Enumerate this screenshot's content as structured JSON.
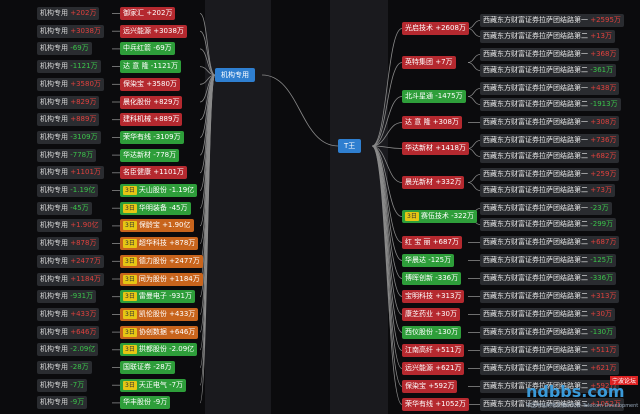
{
  "hubs": {
    "left": "机构专用",
    "right": "T王"
  },
  "left_rows": [
    {
      "label": "机构专用",
      "lval": "+202万",
      "ldir": "up",
      "name": "御家汇",
      "val": "+202万",
      "color": "red",
      "tag": false
    },
    {
      "label": "机构专用",
      "lval": "+3038万",
      "ldir": "up",
      "name": "远兴能源",
      "val": "+3038万",
      "color": "red",
      "tag": false
    },
    {
      "label": "机构专用",
      "lval": "-69万",
      "ldir": "dn",
      "name": "中兵红箭",
      "val": "-69万",
      "color": "green",
      "tag": false
    },
    {
      "label": "机构专用",
      "lval": "-1121万",
      "ldir": "dn",
      "name": "达 意 隆",
      "val": "-1121万",
      "color": "green",
      "tag": false
    },
    {
      "label": "机构专用",
      "lval": "+3580万",
      "ldir": "up",
      "name": "保染宝",
      "val": "+3580万",
      "color": "red",
      "tag": false
    },
    {
      "label": "机构专用",
      "lval": "+829万",
      "ldir": "up",
      "name": "晨化股份",
      "val": "+829万",
      "color": "red",
      "tag": false
    },
    {
      "label": "机构专用",
      "lval": "+889万",
      "ldir": "up",
      "name": "建科机械",
      "val": "+889万",
      "color": "red",
      "tag": false
    },
    {
      "label": "机构专用",
      "lval": "-3109万",
      "ldir": "dn",
      "name": "荣华有线",
      "val": "-3109万",
      "color": "green",
      "tag": false
    },
    {
      "label": "机构专用",
      "lval": "-778万",
      "ldir": "dn",
      "name": "华达新材",
      "val": "-778万",
      "color": "green",
      "tag": false
    },
    {
      "label": "机构专用",
      "lval": "+1101万",
      "ldir": "up",
      "name": "名臣健康",
      "val": "+1101万",
      "color": "red",
      "tag": false
    },
    {
      "label": "机构专用",
      "lval": "-1.19亿",
      "ldir": "dn",
      "name": "天山股份",
      "val": "-1.19亿",
      "color": "green",
      "tag": true
    },
    {
      "label": "机构专用",
      "lval": "-45万",
      "ldir": "dn",
      "name": "华明装备",
      "val": "-45万",
      "color": "green",
      "tag": true
    },
    {
      "label": "机构专用",
      "lval": "+1.90亿",
      "ldir": "up",
      "name": "保龄宝",
      "val": "+1.90亿",
      "color": "orange",
      "tag": true
    },
    {
      "label": "机构专用",
      "lval": "+878万",
      "ldir": "up",
      "name": "超华科技",
      "val": "+878万",
      "color": "orange",
      "tag": true
    },
    {
      "label": "机构专用",
      "lval": "+2477万",
      "ldir": "up",
      "name": "德力股份",
      "val": "+2477万",
      "color": "orange",
      "tag": true
    },
    {
      "label": "机构专用",
      "lval": "+1184万",
      "ldir": "up",
      "name": "同为股份",
      "val": "+1184万",
      "color": "orange",
      "tag": true
    },
    {
      "label": "机构专用",
      "lval": "-931万",
      "ldir": "dn",
      "name": "雷曼电子",
      "val": "-931万",
      "color": "green",
      "tag": true
    },
    {
      "label": "机构专用",
      "lval": "+433万",
      "ldir": "up",
      "name": "凯伦股份",
      "val": "+433万",
      "color": "orange",
      "tag": true
    },
    {
      "label": "机构专用",
      "lval": "+646万",
      "ldir": "up",
      "name": "协创数据",
      "val": "+646万",
      "color": "orange",
      "tag": true
    },
    {
      "label": "机构专用",
      "lval": "-2.09亿",
      "ldir": "dn",
      "name": "拱都股份",
      "val": "-2.09亿",
      "color": "green",
      "tag": true
    },
    {
      "label": "机构专用",
      "lval": "-28万",
      "ldir": "dn",
      "name": "国联证券",
      "val": "-28万",
      "color": "green",
      "tag": false
    },
    {
      "label": "机构专用",
      "lval": "-7万",
      "ldir": "dn",
      "name": "天正电气",
      "val": "-7万",
      "color": "green",
      "tag": true
    },
    {
      "label": "机构专用",
      "lval": "-9万",
      "ldir": "dn",
      "name": "华丰股份",
      "val": "-9万",
      "color": "green",
      "tag": false
    }
  ],
  "right_rows": [
    {
      "name": "光启技术",
      "val": "+2608万",
      "color": "red",
      "tag": false,
      "seats": [
        {
          "s": "西藏东方财富证券拉萨团结路第一",
          "v": "+2595万",
          "d": "up"
        },
        {
          "s": "西藏东方财富证券拉萨团结路第二",
          "v": "+13万",
          "d": "up"
        }
      ]
    },
    {
      "name": "英特集团",
      "val": "+7万",
      "color": "red",
      "tag": false,
      "seats": [
        {
          "s": "西藏东方财富证券拉萨团结路第一",
          "v": "+368万",
          "d": "up"
        },
        {
          "s": "西藏东方财富证券拉萨团结路第二",
          "v": "-361万",
          "d": "dn"
        }
      ]
    },
    {
      "name": "北斗星通",
      "val": "-1475万",
      "color": "green",
      "tag": false,
      "seats": [
        {
          "s": "西藏东方财富证券拉萨团结路第一",
          "v": "+438万",
          "d": "up"
        },
        {
          "s": "西藏东方财富证券拉萨团结路第二",
          "v": "-1913万",
          "d": "dn"
        }
      ]
    },
    {
      "name": "达 意 隆",
      "val": "+308万",
      "color": "red",
      "tag": false,
      "seats": [
        {
          "s": "西藏东方财富证券拉萨团结路第一",
          "v": "+308万",
          "d": "up"
        }
      ]
    },
    {
      "name": "华达新材",
      "val": "+1418万",
      "color": "red",
      "tag": false,
      "seats": [
        {
          "s": "西藏东方财富证券拉萨团结路第一",
          "v": "+736万",
          "d": "up"
        },
        {
          "s": "西藏东方财富证券拉萨团结路第二",
          "v": "+682万",
          "d": "up"
        }
      ]
    },
    {
      "name": "晨光新材",
      "val": "+332万",
      "color": "red",
      "tag": false,
      "seats": [
        {
          "s": "西藏东方财富证券拉萨团结路第一",
          "v": "+259万",
          "d": "up"
        },
        {
          "s": "西藏东方财富证券拉萨团结路第二",
          "v": "+73万",
          "d": "up"
        }
      ]
    },
    {
      "name": "赛伍技术",
      "val": "-322万",
      "color": "green",
      "tag": true,
      "seats": [
        {
          "s": "西藏东方财富证券拉萨团结路第一",
          "v": "-23万",
          "d": "dn"
        },
        {
          "s": "西藏东方财富证券拉萨团结路第二",
          "v": "-299万",
          "d": "dn"
        }
      ]
    },
    {
      "name": "红 宝 丽",
      "val": "+687万",
      "color": "red",
      "tag": false,
      "seats": [
        {
          "s": "西藏东方财富证券拉萨团结路第二",
          "v": "+687万",
          "d": "up"
        }
      ]
    },
    {
      "name": "华晨达",
      "val": "-125万",
      "color": "green",
      "tag": false,
      "seats": [
        {
          "s": "西藏东方财富证券拉萨团结路第二",
          "v": "-125万",
          "d": "dn"
        }
      ]
    },
    {
      "name": "博晖创新",
      "val": "-336万",
      "color": "green",
      "tag": false,
      "seats": [
        {
          "s": "西藏东方财富证券拉萨团结路第二",
          "v": "-336万",
          "d": "dn"
        }
      ]
    },
    {
      "name": "宝明科技",
      "val": "+313万",
      "color": "red",
      "tag": false,
      "seats": [
        {
          "s": "西藏东方财富证券拉萨团结路第二",
          "v": "+313万",
          "d": "up"
        }
      ]
    },
    {
      "name": "康芝药业",
      "val": "+30万",
      "color": "red",
      "tag": false,
      "seats": [
        {
          "s": "西藏东方财富证券拉萨团结路第二",
          "v": "+30万",
          "d": "up"
        }
      ]
    },
    {
      "name": "西仪股份",
      "val": "-130万",
      "color": "green",
      "tag": false,
      "seats": [
        {
          "s": "西藏东方财富证券拉萨团结路第二",
          "v": "-130万",
          "d": "dn"
        }
      ]
    },
    {
      "name": "江南高纤",
      "val": "+511万",
      "color": "red",
      "tag": false,
      "seats": [
        {
          "s": "西藏东方财富证券拉萨团结路第二",
          "v": "+511万",
          "d": "up"
        }
      ]
    },
    {
      "name": "远兴能源",
      "val": "+621万",
      "color": "red",
      "tag": false,
      "seats": [
        {
          "s": "西藏东方财富证券拉萨团结路第二",
          "v": "+621万",
          "d": "up"
        }
      ]
    },
    {
      "name": "保染宝",
      "val": "+592万",
      "color": "red",
      "tag": false,
      "seats": [
        {
          "s": "西藏东方财富证券拉萨团结路第二",
          "v": "+592万",
          "d": "up"
        }
      ]
    },
    {
      "name": "荣华有线",
      "val": "+1052万",
      "color": "red",
      "tag": false,
      "seats": [
        {
          "s": "西藏东方财富证券拉萨团结路第二",
          "v": "+1052万",
          "d": "up"
        }
      ]
    }
  ],
  "tag_text": "3日",
  "watermark": {
    "main": "ndbbs.com",
    "sub": "中国电信网络发展研究会 Telecom Development",
    "tag": "宁波论坛"
  },
  "colors": {
    "up": "#e0413d",
    "dn": "#3bc34a",
    "hub": "#2f7fd0",
    "bg": "#0b0b0d"
  }
}
